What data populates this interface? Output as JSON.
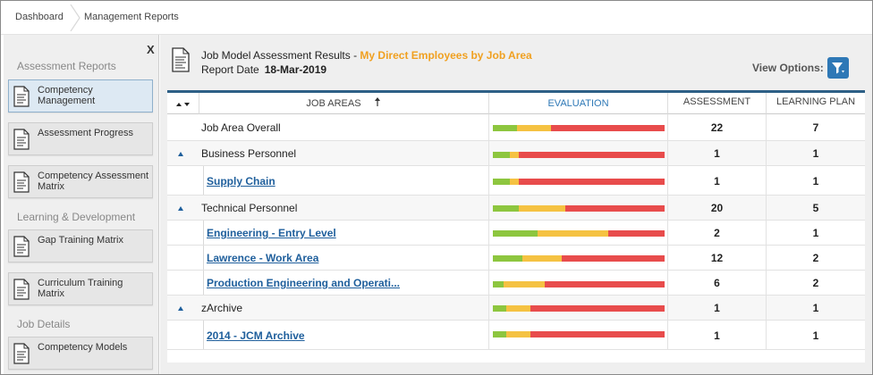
{
  "breadcrumb": {
    "items": [
      "Dashboard",
      "Management Reports"
    ]
  },
  "sidebar": {
    "close_label": "X",
    "sections": [
      {
        "heading": "Assessment Reports",
        "items": [
          "Competency Management",
          "Assessment Progress",
          "Competency Assessment Matrix"
        ]
      },
      {
        "heading": "Learning & Development",
        "items": [
          "Gap Training Matrix",
          "Curriculum Training Matrix"
        ]
      },
      {
        "heading": "Job Details",
        "items": [
          "Competency Models"
        ]
      }
    ]
  },
  "report": {
    "title": "Job Model Assessment Results",
    "title_sep": " - ",
    "subtitle": "My Direct Employees by Job Area",
    "date_label": "Report Date",
    "date_value": "18-Mar-2019",
    "view_options_label": "View Options:"
  },
  "table": {
    "headers": {
      "job_areas": "JOB AREAS",
      "evaluation": "EVALUATION",
      "assessment": "ASSESSMENT",
      "learning_plan": "LEARNING PLAN"
    },
    "colors": {
      "green": "#8dc63f",
      "yellow": "#f5c242",
      "red": "#e84c4c"
    },
    "rows": [
      {
        "name": "Job Area Overall",
        "kind": "overall",
        "assessment": "22",
        "learning_plan": "7",
        "eval": [
          0.14,
          0.2,
          0.66
        ]
      },
      {
        "name": "Business Personnel",
        "kind": "group",
        "assessment": "1",
        "learning_plan": "1",
        "eval": [
          0.1,
          0.05,
          0.85
        ]
      },
      {
        "name": "Supply Chain",
        "kind": "link",
        "assessment": "1",
        "learning_plan": "1",
        "eval": [
          0.1,
          0.05,
          0.85
        ]
      },
      {
        "name": "Technical Personnel",
        "kind": "group",
        "assessment": "20",
        "learning_plan": "5",
        "eval": [
          0.15,
          0.27,
          0.58
        ]
      },
      {
        "name": "Engineering - Entry Level",
        "kind": "link",
        "assessment": "2",
        "learning_plan": "1",
        "eval": [
          0.26,
          0.41,
          0.33
        ]
      },
      {
        "name": "Lawrence - Work Area",
        "kind": "link",
        "assessment": "12",
        "learning_plan": "2",
        "eval": [
          0.17,
          0.23,
          0.6
        ]
      },
      {
        "name": "Production Engineering and Operati...",
        "kind": "link",
        "assessment": "6",
        "learning_plan": "2",
        "eval": [
          0.06,
          0.24,
          0.7
        ]
      },
      {
        "name": "zArchive",
        "kind": "group",
        "assessment": "1",
        "learning_plan": "1",
        "eval": [
          0.08,
          0.14,
          0.78
        ]
      },
      {
        "name": "2014 - JCM Archive",
        "kind": "link",
        "assessment": "1",
        "learning_plan": "1",
        "eval": [
          0.08,
          0.14,
          0.78
        ]
      }
    ]
  }
}
